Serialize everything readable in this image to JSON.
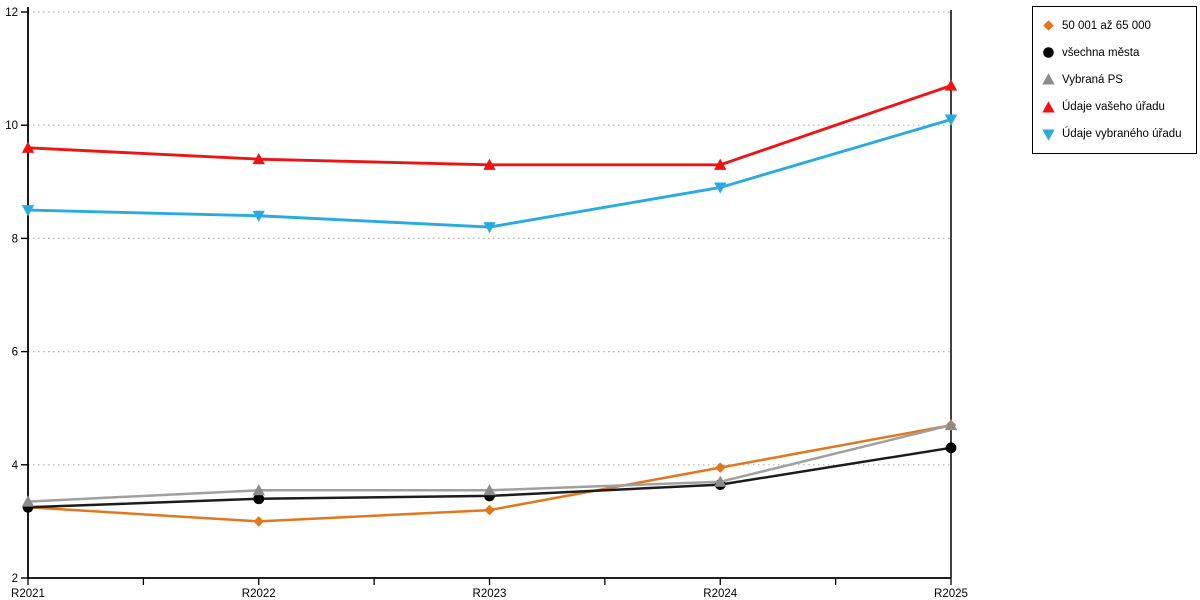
{
  "chart_data": {
    "type": "line",
    "title": "",
    "xlabel": "",
    "ylabel": "",
    "categories": [
      "R2021",
      "R2022",
      "R2023",
      "R2024",
      "R2025"
    ],
    "series": [
      {
        "name": "50 001 až 65 000",
        "marker": "diamond",
        "color": "#E2781E",
        "line_color": "#E2781E",
        "values": [
          3.25,
          3.0,
          3.2,
          3.95,
          4.7
        ]
      },
      {
        "name": "všechna města",
        "marker": "circle",
        "color": "#000000",
        "line_color": "#1C1C1C",
        "values": [
          3.25,
          3.4,
          3.45,
          3.65,
          4.3
        ]
      },
      {
        "name": "Vybraná PS",
        "marker": "triangle-up",
        "color": "#8C8C8C",
        "line_color": "#A0A0A0",
        "values": [
          3.35,
          3.55,
          3.55,
          3.7,
          4.7
        ]
      },
      {
        "name": "Údaje vašeho úřadu",
        "marker": "triangle-up",
        "color": "#EE1414",
        "line_color": "#EE1414",
        "values": [
          9.6,
          9.4,
          9.3,
          9.3,
          10.7
        ]
      },
      {
        "name": "Údaje vybraného úřadu",
        "marker": "triangle-down",
        "color": "#29ABE2",
        "line_color": "#29ABE2",
        "values": [
          8.5,
          8.4,
          8.2,
          8.9,
          10.1
        ]
      }
    ],
    "ylim": [
      2,
      12
    ],
    "ytick_step": 2,
    "y_tick_labels": [
      "2",
      "4",
      "6",
      "8",
      "10",
      "12"
    ],
    "x_minor_ticks": true,
    "grid": "horizontal-dotted",
    "grid_color": "#B0B0B0",
    "axis_color": "#000000",
    "legend_position": "top-right"
  }
}
